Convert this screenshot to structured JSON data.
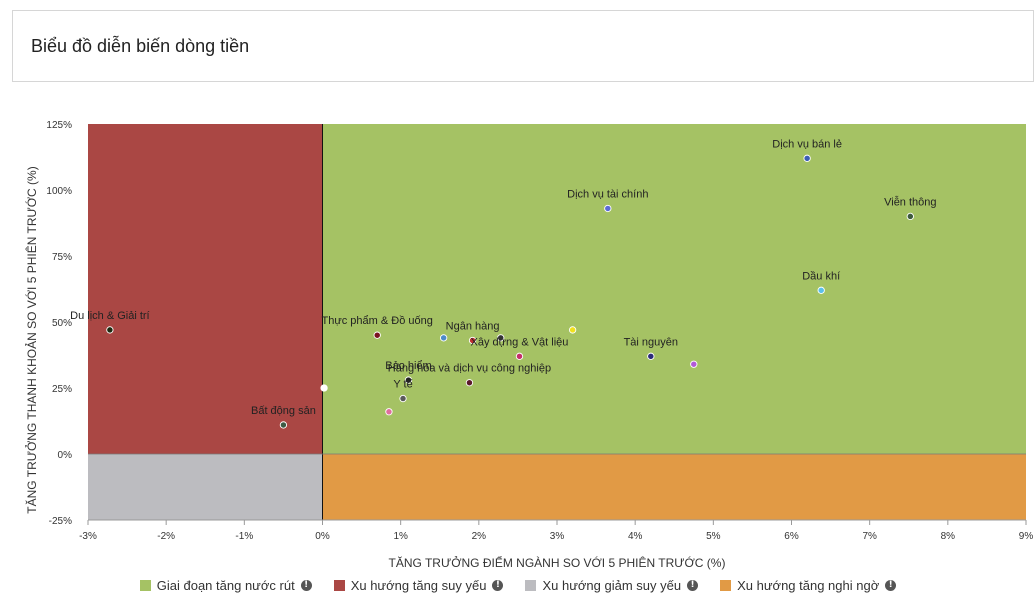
{
  "header": {
    "title": "Biểu đồ diễn biến dòng tiền"
  },
  "chart_data": {
    "type": "scatter",
    "xlabel": "TĂNG TRƯỞNG ĐIỂM NGÀNH SO VỚI 5 PHIÊN TRƯỚC (%)",
    "ylabel": "TĂNG TRƯỞNG THANH KHOẢN SO VỚI 5 PHIÊN TRƯỚC (%)",
    "xlim": [
      -3,
      9
    ],
    "ylim": [
      -25,
      125
    ],
    "xticks": [
      -3,
      -2,
      -1,
      0,
      1,
      2,
      3,
      4,
      5,
      6,
      7,
      8,
      9
    ],
    "xtick_labels": [
      "-3%",
      "-2%",
      "-1%",
      "0%",
      "1%",
      "2%",
      "3%",
      "4%",
      "5%",
      "6%",
      "7%",
      "8%",
      "9%"
    ],
    "yticks": [
      -25,
      0,
      25,
      50,
      75,
      100,
      125
    ],
    "ytick_labels": [
      "-25%",
      "0%",
      "25%",
      "50%",
      "75%",
      "100%",
      "125%"
    ],
    "quadrants": [
      {
        "name": "Giai đoạn tăng nước rút",
        "color": "#a5c264"
      },
      {
        "name": "Xu hướng tăng suy yếu",
        "color": "#aa4744"
      },
      {
        "name": "Xu hướng giảm suy yếu",
        "color": "#bcbcc0"
      },
      {
        "name": "Xu hướng tăng nghi ngờ",
        "color": "#e19a45"
      }
    ],
    "points": [
      {
        "label": "Dịch vụ bán lẻ",
        "x": 6.2,
        "y": 112,
        "color": "#3b5db5"
      },
      {
        "label": "Viễn thông",
        "x": 7.52,
        "y": 90,
        "color": "#3d5a3d"
      },
      {
        "label": "Dịch vụ tài chính",
        "x": 3.65,
        "y": 93,
        "color": "#5b6bd6"
      },
      {
        "label": "Dầu khí",
        "x": 6.38,
        "y": 62,
        "color": "#5bc0eb"
      },
      {
        "label": "Du lịch & Giải trí",
        "x": -2.72,
        "y": 47,
        "color": "#1c2a10"
      },
      {
        "label": "Thực phẩm & Đồ uống",
        "x": 0.7,
        "y": 45,
        "color": "#7a1420"
      },
      {
        "label": "",
        "x": 1.55,
        "y": 44,
        "color": "#4d8bc9"
      },
      {
        "label": "Ngân hàng",
        "x": 1.92,
        "y": 43,
        "color": "#c03030"
      },
      {
        "label": "",
        "x": 2.28,
        "y": 44,
        "color": "#333333"
      },
      {
        "label": "",
        "x": 3.2,
        "y": 47,
        "color": "#f1e21c"
      },
      {
        "label": "Xây dựng & Vật liệu",
        "x": 2.52,
        "y": 37,
        "color": "#c4306a"
      },
      {
        "label": "Tài nguyên",
        "x": 4.2,
        "y": 37,
        "color": "#2c2c7a"
      },
      {
        "label": "",
        "x": 4.75,
        "y": 34,
        "color": "#b25ad8"
      },
      {
        "label": "Hàng hóa và dịch vụ công nghiệp",
        "x": 1.88,
        "y": 27,
        "color": "#5a1a2a"
      },
      {
        "label": "Bảo hiểm",
        "x": 1.1,
        "y": 28,
        "color": "#222222"
      },
      {
        "label": "Y tế",
        "x": 1.03,
        "y": 21,
        "color": "#5a5a5a"
      },
      {
        "label": "",
        "x": 0.85,
        "y": 16,
        "color": "#e06e9e"
      },
      {
        "label": "",
        "x": 0.02,
        "y": 25,
        "color": "#ffffff"
      },
      {
        "label": "Bất động sản",
        "x": -0.5,
        "y": 11,
        "color": "#3c5a45"
      }
    ]
  },
  "legend": {
    "items": [
      {
        "label": "Giai đoạn tăng nước rút",
        "color": "#a5c264"
      },
      {
        "label": "Xu hướng tăng suy yếu",
        "color": "#aa4744"
      },
      {
        "label": "Xu hướng giảm suy yếu",
        "color": "#bcbcc0"
      },
      {
        "label": "Xu hướng tăng nghi ngờ",
        "color": "#e19a45"
      }
    ],
    "info_glyph": "!"
  }
}
